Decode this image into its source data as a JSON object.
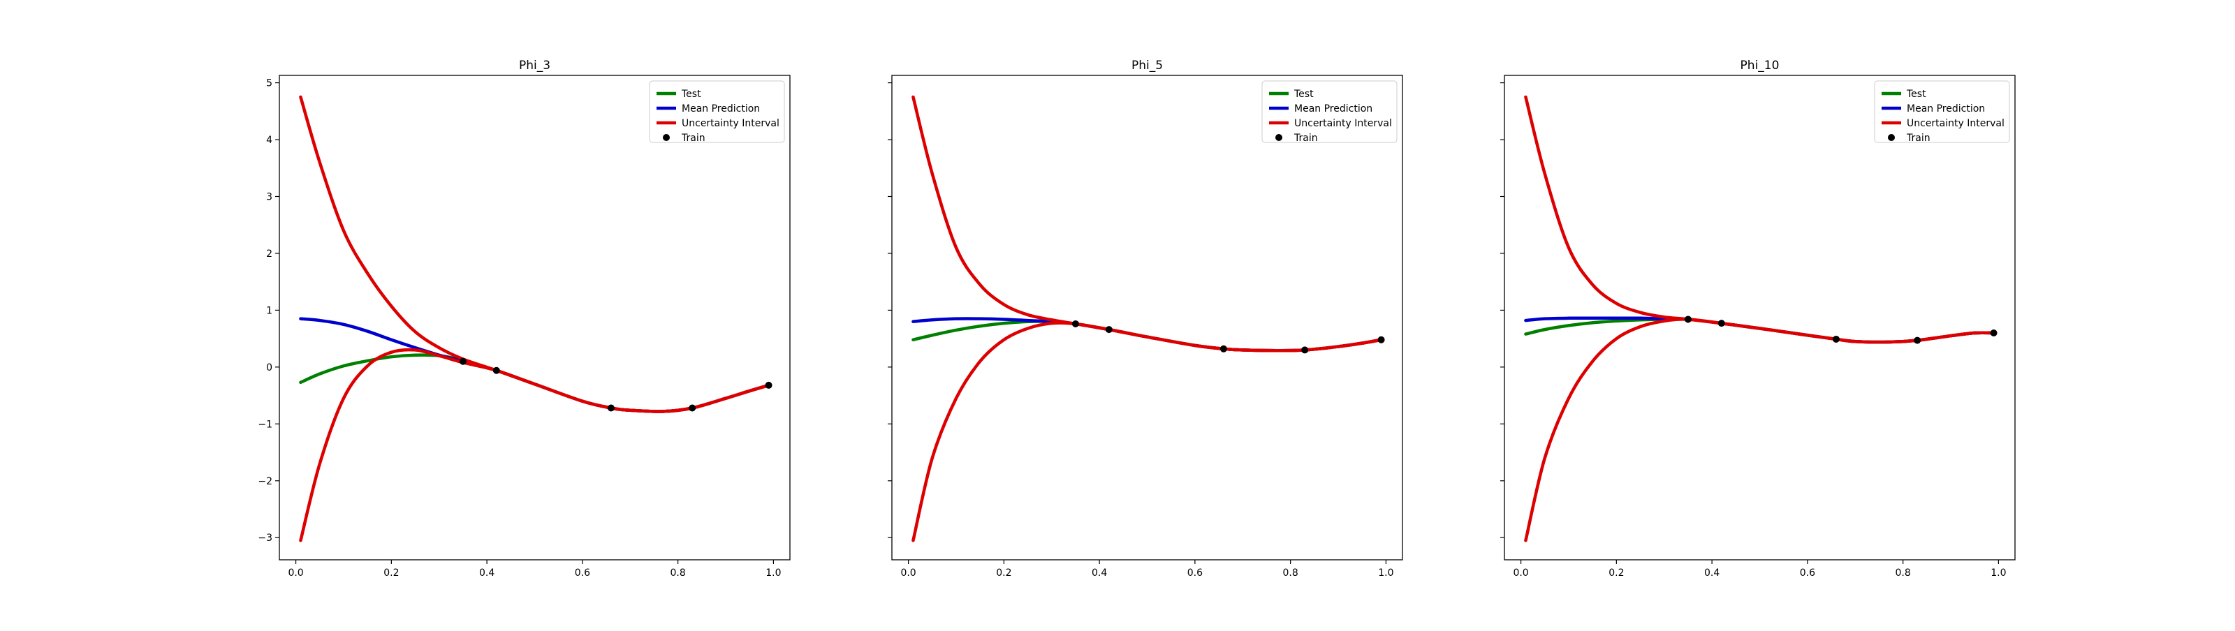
{
  "chart_data": [
    {
      "type": "line",
      "title": "Phi_3",
      "xlabel": "",
      "ylabel": "",
      "xlim": [
        -0.0345,
        1.0345
      ],
      "ylim": [
        -3.39,
        5.13
      ],
      "x_ticks": [
        0.0,
        0.2,
        0.4,
        0.6,
        0.8,
        1.0
      ],
      "x_tick_labels": [
        "0.0",
        "0.2",
        "0.4",
        "0.6",
        "0.8",
        "1.0"
      ],
      "y_ticks": [
        -3,
        -2,
        -1,
        0,
        1,
        2,
        3,
        4,
        5
      ],
      "y_tick_labels": [
        "−3",
        "−2",
        "−1",
        "0",
        "1",
        "2",
        "3",
        "4",
        "5"
      ],
      "show_y_tick_labels": true,
      "grid": false,
      "legend_position": "top-right",
      "x": [
        0.01,
        0.05,
        0.1,
        0.15,
        0.2,
        0.25,
        0.3,
        0.35,
        0.42,
        0.5,
        0.6,
        0.66,
        0.7,
        0.77,
        0.83,
        0.9,
        0.95,
        0.99
      ],
      "series": [
        {
          "name": "Test",
          "color": "#008000",
          "values": [
            -0.27,
            -0.12,
            0.02,
            0.11,
            0.18,
            0.21,
            0.2,
            0.12,
            -0.06,
            -0.3,
            -0.6,
            -0.72,
            -0.76,
            -0.78,
            -0.72,
            -0.55,
            -0.42,
            -0.32
          ]
        },
        {
          "name": "Mean Prediction",
          "color": "#0000CC",
          "values": [
            0.85,
            0.82,
            0.75,
            0.63,
            0.48,
            0.34,
            0.21,
            0.1,
            -0.06,
            -0.3,
            -0.6,
            -0.72,
            -0.76,
            -0.78,
            -0.72,
            -0.55,
            -0.42,
            -0.32
          ]
        },
        {
          "name": "Uncertainty Interval",
          "color": "#DD0000",
          "values": [
            4.75,
            3.6,
            2.4,
            1.65,
            1.07,
            0.62,
            0.34,
            0.14,
            -0.06,
            -0.3,
            -0.6,
            -0.72,
            -0.76,
            -0.78,
            -0.72,
            -0.55,
            -0.42,
            -0.32
          ]
        },
        {
          "name": "",
          "color": "#DD0000",
          "values": [
            -3.05,
            -1.7,
            -0.55,
            0.02,
            0.26,
            0.3,
            0.2,
            0.08,
            -0.06,
            -0.3,
            -0.6,
            -0.72,
            -0.76,
            -0.78,
            -0.72,
            -0.55,
            -0.42,
            -0.32
          ]
        }
      ],
      "train_name": "Train",
      "train_color": "#000000",
      "train_points": {
        "x": [
          0.35,
          0.42,
          0.66,
          0.83,
          0.99
        ],
        "y": [
          0.1,
          -0.06,
          -0.72,
          -0.72,
          -0.32
        ]
      }
    },
    {
      "type": "line",
      "title": "Phi_5",
      "xlabel": "",
      "ylabel": "",
      "xlim": [
        -0.0345,
        1.0345
      ],
      "ylim": [
        -3.39,
        5.13
      ],
      "x_ticks": [
        0.0,
        0.2,
        0.4,
        0.6,
        0.8,
        1.0
      ],
      "x_tick_labels": [
        "0.0",
        "0.2",
        "0.4",
        "0.6",
        "0.8",
        "1.0"
      ],
      "y_ticks": [
        -3,
        -2,
        -1,
        0,
        1,
        2,
        3,
        4,
        5
      ],
      "y_tick_labels": [
        "",
        "",
        "",
        "",
        "",
        "",
        "",
        "",
        ""
      ],
      "show_y_tick_labels": false,
      "grid": false,
      "legend_position": "top-right",
      "x": [
        0.01,
        0.05,
        0.1,
        0.15,
        0.2,
        0.25,
        0.3,
        0.35,
        0.42,
        0.5,
        0.6,
        0.66,
        0.7,
        0.77,
        0.83,
        0.9,
        0.95,
        0.99
      ],
      "series": [
        {
          "name": "Test",
          "color": "#008000",
          "values": [
            0.48,
            0.56,
            0.65,
            0.72,
            0.77,
            0.8,
            0.8,
            0.76,
            0.66,
            0.53,
            0.38,
            0.32,
            0.3,
            0.29,
            0.3,
            0.36,
            0.42,
            0.48
          ]
        },
        {
          "name": "Mean Prediction",
          "color": "#0000CC",
          "values": [
            0.8,
            0.83,
            0.85,
            0.85,
            0.84,
            0.82,
            0.8,
            0.76,
            0.66,
            0.53,
            0.38,
            0.32,
            0.3,
            0.29,
            0.3,
            0.36,
            0.42,
            0.48
          ]
        },
        {
          "name": "Uncertainty Interval",
          "color": "#DD0000",
          "values": [
            4.75,
            3.4,
            2.1,
            1.45,
            1.1,
            0.92,
            0.83,
            0.76,
            0.66,
            0.53,
            0.38,
            0.32,
            0.3,
            0.29,
            0.3,
            0.36,
            0.42,
            0.48
          ]
        },
        {
          "name": "",
          "color": "#DD0000",
          "values": [
            -3.05,
            -1.6,
            -0.55,
            0.1,
            0.48,
            0.68,
            0.77,
            0.76,
            0.66,
            0.53,
            0.38,
            0.32,
            0.3,
            0.29,
            0.3,
            0.36,
            0.42,
            0.48
          ]
        }
      ],
      "train_name": "Train",
      "train_color": "#000000",
      "train_points": {
        "x": [
          0.35,
          0.42,
          0.66,
          0.83,
          0.99
        ],
        "y": [
          0.76,
          0.66,
          0.32,
          0.3,
          0.48
        ]
      }
    },
    {
      "type": "line",
      "title": "Phi_10",
      "xlabel": "",
      "ylabel": "",
      "xlim": [
        -0.0345,
        1.0345
      ],
      "ylim": [
        -3.39,
        5.13
      ],
      "x_ticks": [
        0.0,
        0.2,
        0.4,
        0.6,
        0.8,
        1.0
      ],
      "x_tick_labels": [
        "0.0",
        "0.2",
        "0.4",
        "0.6",
        "0.8",
        "1.0"
      ],
      "y_ticks": [
        -3,
        -2,
        -1,
        0,
        1,
        2,
        3,
        4,
        5
      ],
      "y_tick_labels": [
        "",
        "",
        "",
        "",
        "",
        "",
        "",
        "",
        ""
      ],
      "show_y_tick_labels": false,
      "grid": false,
      "legend_position": "top-right",
      "x": [
        0.01,
        0.05,
        0.1,
        0.15,
        0.2,
        0.25,
        0.3,
        0.35,
        0.42,
        0.5,
        0.6,
        0.66,
        0.7,
        0.77,
        0.83,
        0.9,
        0.95,
        0.99
      ],
      "series": [
        {
          "name": "Test",
          "color": "#008000",
          "values": [
            0.58,
            0.66,
            0.73,
            0.78,
            0.81,
            0.83,
            0.84,
            0.84,
            0.77,
            0.68,
            0.56,
            0.49,
            0.45,
            0.44,
            0.47,
            0.55,
            0.6,
            0.6
          ]
        },
        {
          "name": "Mean Prediction",
          "color": "#0000CC",
          "values": [
            0.82,
            0.85,
            0.86,
            0.86,
            0.86,
            0.86,
            0.85,
            0.84,
            0.77,
            0.68,
            0.56,
            0.49,
            0.45,
            0.44,
            0.47,
            0.55,
            0.6,
            0.6
          ]
        },
        {
          "name": "Uncertainty Interval",
          "color": "#DD0000",
          "values": [
            4.75,
            3.4,
            2.1,
            1.45,
            1.12,
            0.96,
            0.88,
            0.84,
            0.77,
            0.68,
            0.56,
            0.49,
            0.45,
            0.44,
            0.47,
            0.55,
            0.6,
            0.6
          ]
        },
        {
          "name": "",
          "color": "#DD0000",
          "values": [
            -3.05,
            -1.6,
            -0.55,
            0.1,
            0.5,
            0.71,
            0.81,
            0.84,
            0.77,
            0.68,
            0.56,
            0.49,
            0.45,
            0.44,
            0.47,
            0.55,
            0.6,
            0.6
          ]
        }
      ],
      "train_name": "Train",
      "train_color": "#000000",
      "train_points": {
        "x": [
          0.35,
          0.42,
          0.66,
          0.83,
          0.99
        ],
        "y": [
          0.84,
          0.77,
          0.49,
          0.47,
          0.6
        ]
      }
    }
  ]
}
